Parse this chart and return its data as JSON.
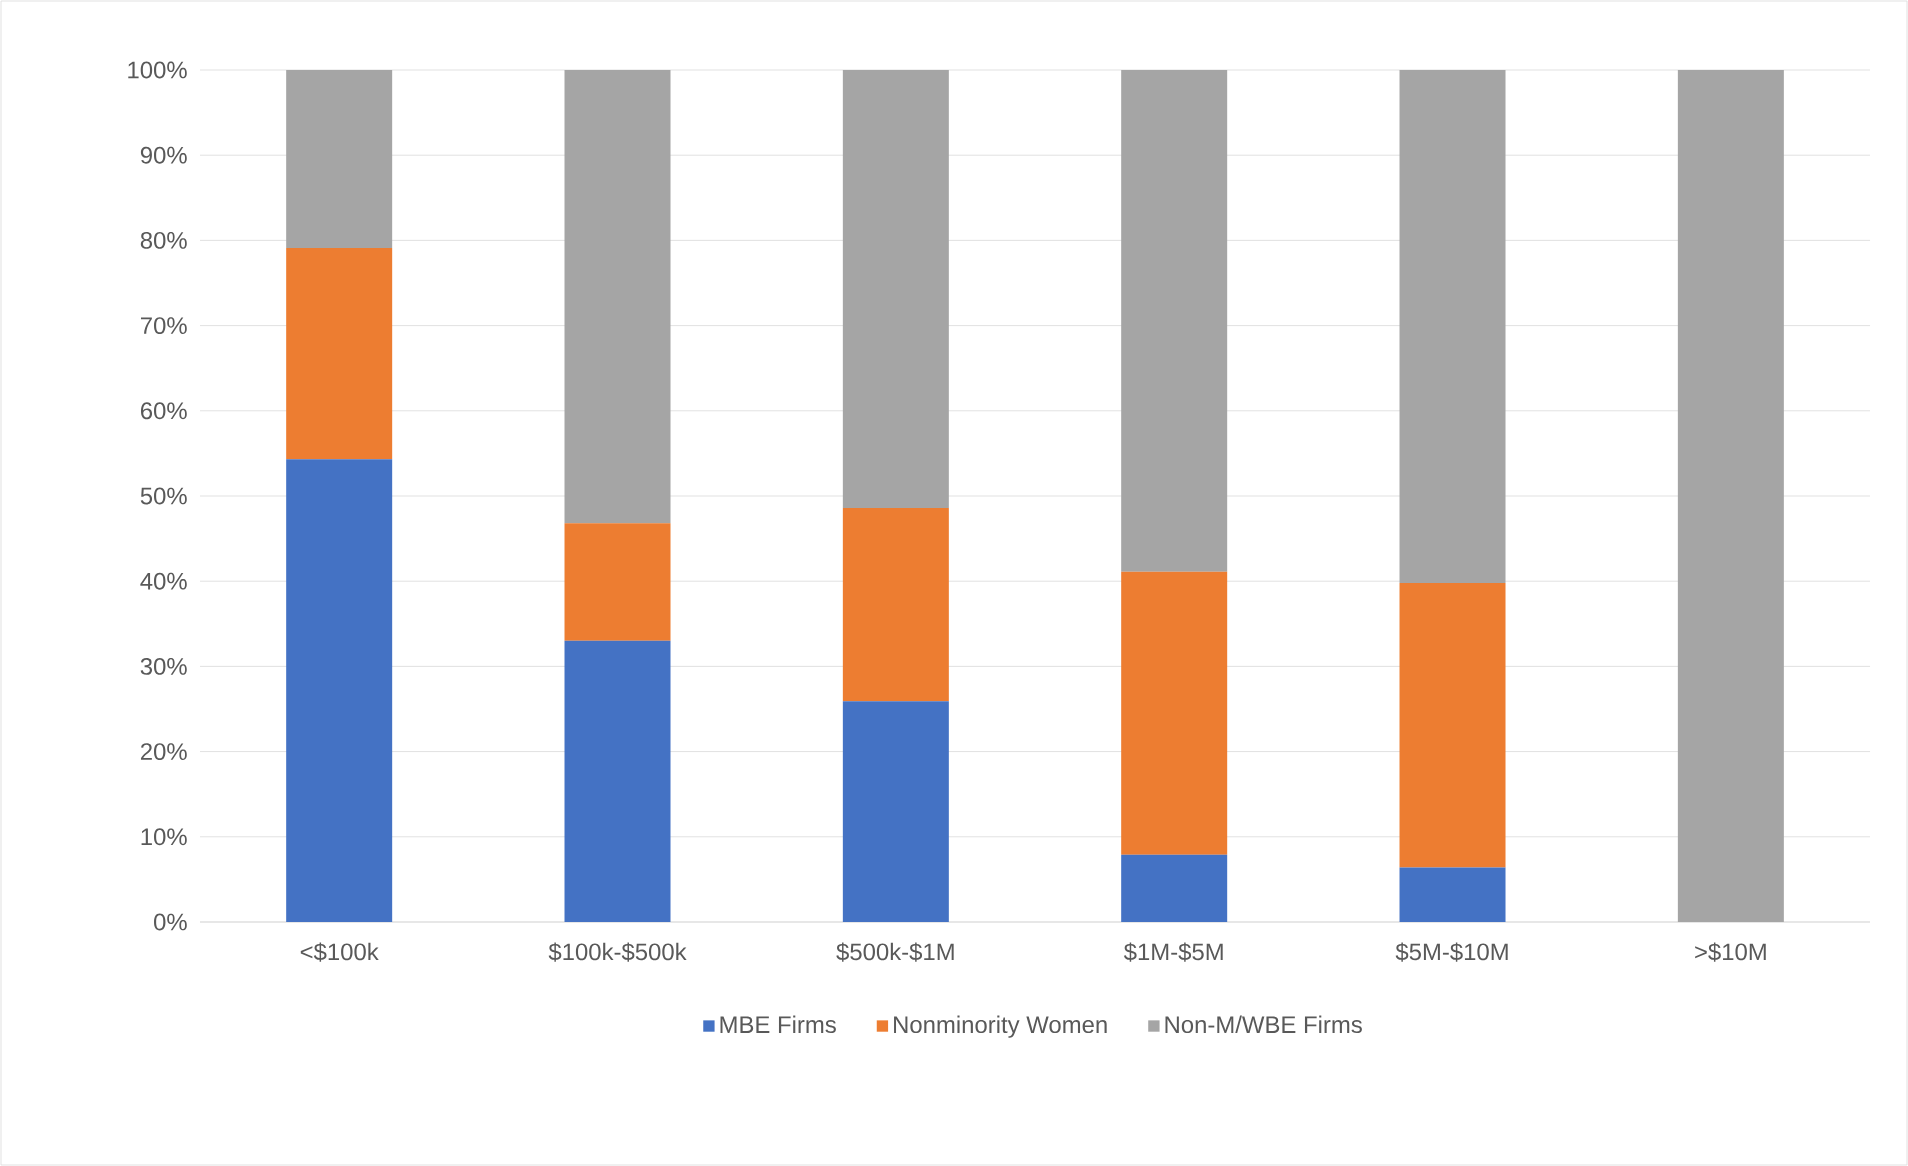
{
  "chart_data": {
    "type": "bar",
    "stacked": true,
    "categories": [
      "<$100k",
      "$100k-$500k",
      "$500k-$1M",
      "$1M-$5M",
      "$5M-$10M",
      ">$10M"
    ],
    "series": [
      {
        "name": "MBE Firms",
        "color": "#4472c4",
        "values": [
          54.3,
          33.0,
          25.9,
          7.9,
          6.4,
          0
        ]
      },
      {
        "name": "Nonminority Women",
        "color": "#ed7d31",
        "values": [
          24.8,
          13.8,
          22.7,
          33.2,
          33.4,
          0
        ]
      },
      {
        "name": "Non-M/WBE Firms",
        "color": "#a5a5a5",
        "values": [
          20.9,
          53.2,
          51.4,
          58.9,
          60.2,
          100
        ]
      }
    ],
    "ylim": [
      0,
      100
    ],
    "yticks": [
      {
        "value": 0,
        "label": "0%"
      },
      {
        "value": 10,
        "label": "10%"
      },
      {
        "value": 20,
        "label": "20%"
      },
      {
        "value": 30,
        "label": "30%"
      },
      {
        "value": 40,
        "label": "40%"
      },
      {
        "value": 50,
        "label": "50%"
      },
      {
        "value": 60,
        "label": "60%"
      },
      {
        "value": 70,
        "label": "70%"
      },
      {
        "value": 80,
        "label": "80%"
      },
      {
        "value": 90,
        "label": "90%"
      },
      {
        "value": 100,
        "label": "100%"
      }
    ],
    "grid": "y",
    "legend": "bottom"
  }
}
